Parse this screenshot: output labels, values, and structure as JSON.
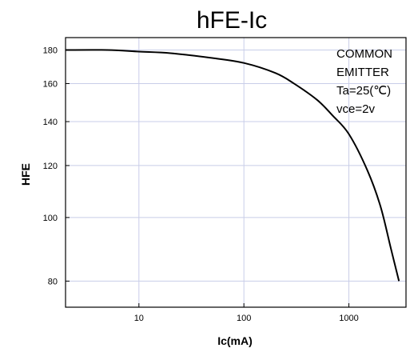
{
  "chart_data": {
    "type": "line",
    "title": "hFE-Ic",
    "xlabel": "Ic(mA)",
    "ylabel": "HFE",
    "xscale": "log",
    "yscale": "log",
    "xlim": [
      2,
      3500
    ],
    "ylim": [
      73,
      188
    ],
    "grid": true,
    "x_ticks": [
      10,
      100,
      1000
    ],
    "y_ticks": [
      80,
      100,
      120,
      140,
      160,
      180
    ],
    "annotations": [
      "COMMON",
      "EMITTER",
      "Ta=25(℃)",
      "vce=2v"
    ],
    "series": [
      {
        "x": [
          2,
          5,
          10,
          20,
          50,
          100,
          200,
          300,
          500,
          700,
          1000,
          1500,
          2000,
          2500,
          3000
        ],
        "values": [
          180,
          180,
          179,
          178,
          175,
          172,
          166,
          160,
          151,
          143,
          134,
          118,
          104,
          90,
          80
        ]
      }
    ]
  }
}
